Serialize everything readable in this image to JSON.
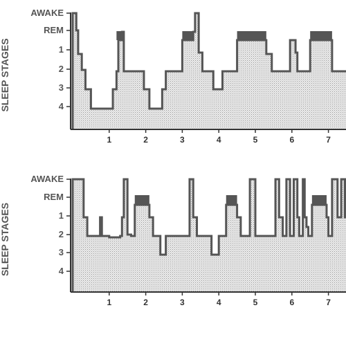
{
  "colors": {
    "axis": "#333333",
    "outline": "#555555",
    "rem_fill": "#555555",
    "text": "#555555",
    "area_fill": "hatch-grey"
  },
  "chart_data": [
    {
      "type": "area",
      "ylabel": "SLEEP STAGES",
      "y_categories": [
        "AWAKE",
        "REM",
        "1",
        "2",
        "3",
        "4"
      ],
      "x_ticks": [
        1,
        2,
        3,
        4,
        5,
        6,
        7
      ],
      "xlim": [
        0,
        7.6
      ],
      "grid": false,
      "legend": "none",
      "steps": [
        {
          "x": 0.0,
          "stage": 5
        },
        {
          "x": 0.1,
          "stage": 4.1
        },
        {
          "x": 0.15,
          "stage": 2.9
        },
        {
          "x": 0.25,
          "stage": 2.1
        },
        {
          "x": 0.35,
          "stage": 1
        },
        {
          "x": 0.5,
          "stage": 0
        },
        {
          "x": 1.1,
          "stage": 1
        },
        {
          "x": 1.2,
          "stage": 2
        },
        {
          "x": 1.25,
          "stage": 3.6
        },
        {
          "x": 1.35,
          "stage": 4
        },
        {
          "x": 1.4,
          "stage": 2
        },
        {
          "x": 1.95,
          "stage": 1
        },
        {
          "x": 2.1,
          "stage": 0
        },
        {
          "x": 2.45,
          "stage": 1
        },
        {
          "x": 2.55,
          "stage": 2
        },
        {
          "x": 3.0,
          "stage": 3.6
        },
        {
          "x": 3.3,
          "stage": 4
        },
        {
          "x": 3.35,
          "stage": 5
        },
        {
          "x": 3.45,
          "stage": 3
        },
        {
          "x": 3.55,
          "stage": 2
        },
        {
          "x": 3.85,
          "stage": 1
        },
        {
          "x": 4.1,
          "stage": 2
        },
        {
          "x": 4.5,
          "stage": 3.6
        },
        {
          "x": 5.3,
          "stage": 2.9
        },
        {
          "x": 5.45,
          "stage": 2
        },
        {
          "x": 5.95,
          "stage": 3.6
        },
        {
          "x": 6.1,
          "stage": 3
        },
        {
          "x": 6.15,
          "stage": 2
        },
        {
          "x": 6.5,
          "stage": 3.6
        },
        {
          "x": 7.1,
          "stage": 2
        },
        {
          "x": 7.6,
          "stage": 2
        }
      ],
      "rem_periods": [
        [
          1.2,
          1.4
        ],
        [
          3.0,
          3.3
        ],
        [
          4.5,
          5.3
        ],
        [
          6.5,
          7.1
        ]
      ]
    },
    {
      "type": "area",
      "ylabel": "SLEEP STAGES",
      "y_categories": [
        "AWAKE",
        "REM",
        "1",
        "2",
        "3",
        "4"
      ],
      "x_ticks": [
        1,
        2,
        3,
        4,
        5,
        6,
        7
      ],
      "xlim": [
        0,
        7.6
      ],
      "grid": false,
      "legend": "none",
      "steps": [
        {
          "x": 0.0,
          "stage": 5
        },
        {
          "x": 0.1,
          "stage": 5
        },
        {
          "x": 0.2,
          "stage": 5
        },
        {
          "x": 0.3,
          "stage": 3
        },
        {
          "x": 0.4,
          "stage": 2
        },
        {
          "x": 0.6,
          "stage": 2
        },
        {
          "x": 0.7,
          "stage": 2
        },
        {
          "x": 0.75,
          "stage": 3
        },
        {
          "x": 0.8,
          "stage": 2
        },
        {
          "x": 0.9,
          "stage": 2
        },
        {
          "x": 1.0,
          "stage": 1.9
        },
        {
          "x": 1.3,
          "stage": 2
        },
        {
          "x": 1.35,
          "stage": 3
        },
        {
          "x": 1.4,
          "stage": 5
        },
        {
          "x": 1.5,
          "stage": 2.1
        },
        {
          "x": 1.6,
          "stage": 2
        },
        {
          "x": 1.7,
          "stage": 3.6
        },
        {
          "x": 2.1,
          "stage": 3
        },
        {
          "x": 2.2,
          "stage": 2
        },
        {
          "x": 2.4,
          "stage": 1
        },
        {
          "x": 2.55,
          "stage": 2
        },
        {
          "x": 3.2,
          "stage": 5
        },
        {
          "x": 3.3,
          "stage": 3
        },
        {
          "x": 3.4,
          "stage": 2
        },
        {
          "x": 3.8,
          "stage": 1
        },
        {
          "x": 4.0,
          "stage": 2
        },
        {
          "x": 4.2,
          "stage": 3.6
        },
        {
          "x": 4.5,
          "stage": 3
        },
        {
          "x": 4.6,
          "stage": 2
        },
        {
          "x": 4.85,
          "stage": 5
        },
        {
          "x": 5.0,
          "stage": 2
        },
        {
          "x": 5.55,
          "stage": 5
        },
        {
          "x": 5.65,
          "stage": 3
        },
        {
          "x": 5.75,
          "stage": 2
        },
        {
          "x": 5.85,
          "stage": 5
        },
        {
          "x": 5.95,
          "stage": 2
        },
        {
          "x": 6.05,
          "stage": 5
        },
        {
          "x": 6.15,
          "stage": 3
        },
        {
          "x": 6.2,
          "stage": 2
        },
        {
          "x": 6.3,
          "stage": 5
        },
        {
          "x": 6.35,
          "stage": 3
        },
        {
          "x": 6.4,
          "stage": 2.5
        },
        {
          "x": 6.45,
          "stage": 2
        },
        {
          "x": 6.55,
          "stage": 3.6
        },
        {
          "x": 6.95,
          "stage": 3
        },
        {
          "x": 7.0,
          "stage": 2
        },
        {
          "x": 7.1,
          "stage": 5
        },
        {
          "x": 7.25,
          "stage": 3
        },
        {
          "x": 7.35,
          "stage": 5
        },
        {
          "x": 7.45,
          "stage": 3
        },
        {
          "x": 7.5,
          "stage": 5
        },
        {
          "x": 7.6,
          "stage": 5
        }
      ],
      "rem_periods": [
        [
          1.7,
          2.1
        ],
        [
          4.2,
          4.5
        ],
        [
          6.55,
          6.95
        ]
      ]
    }
  ]
}
